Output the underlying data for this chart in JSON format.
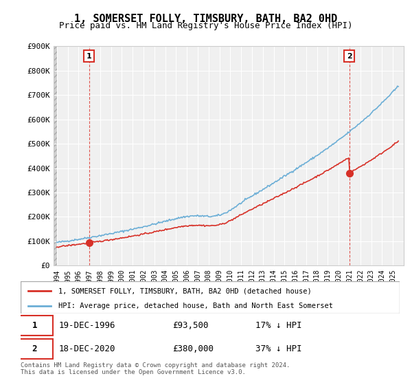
{
  "title": "1, SOMERSET FOLLY, TIMSBURY, BATH, BA2 0HD",
  "subtitle": "Price paid vs. HM Land Registry's House Price Index (HPI)",
  "ylabel": "",
  "ylim": [
    0,
    900000
  ],
  "yticks": [
    0,
    100000,
    200000,
    300000,
    400000,
    500000,
    600000,
    700000,
    800000,
    900000
  ],
  "ytick_labels": [
    "£0",
    "£100K",
    "£200K",
    "£300K",
    "£400K",
    "£500K",
    "£600K",
    "£700K",
    "£800K",
    "£900K"
  ],
  "sale1_date": 1996.97,
  "sale1_price": 93500,
  "sale2_date": 2020.97,
  "sale2_price": 380000,
  "hpi_color": "#6baed6",
  "price_color": "#d73027",
  "background_color": "#ffffff",
  "plot_bg_color": "#f0f0f0",
  "legend_label_red": "1, SOMERSET FOLLY, TIMSBURY, BATH, BA2 0HD (detached house)",
  "legend_label_blue": "HPI: Average price, detached house, Bath and North East Somerset",
  "table_row1": [
    "1",
    "19-DEC-1996",
    "£93,500",
    "17% ↓ HPI"
  ],
  "table_row2": [
    "2",
    "18-DEC-2020",
    "£380,000",
    "37% ↓ HPI"
  ],
  "footer": "Contains HM Land Registry data © Crown copyright and database right 2024.\nThis data is licensed under the Open Government Licence v3.0.",
  "xmin": 1994,
  "xmax": 2026
}
